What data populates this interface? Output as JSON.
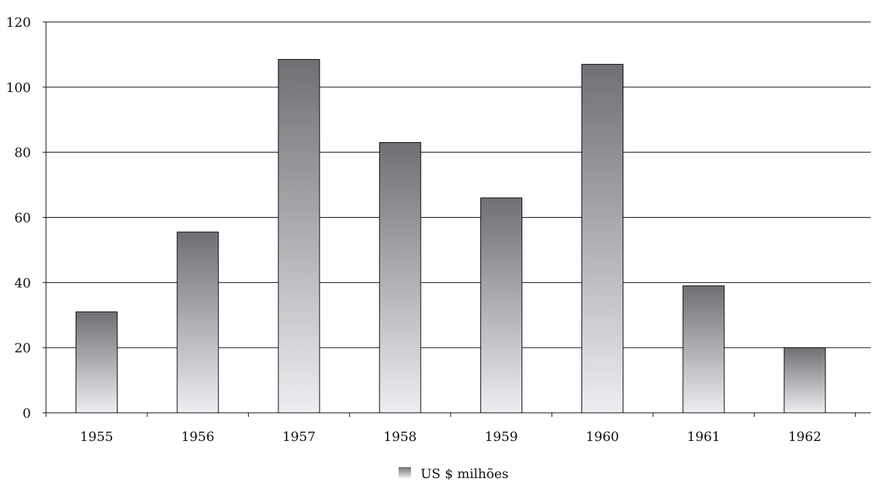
{
  "chart_data": {
    "type": "bar",
    "categories": [
      "1955",
      "1956",
      "1957",
      "1958",
      "1959",
      "1960",
      "1961",
      "1962"
    ],
    "series": [
      {
        "name": "US $ milhões",
        "values": [
          31,
          55.5,
          108.5,
          83,
          66,
          107,
          39,
          20
        ]
      }
    ],
    "title": "",
    "xlabel": "",
    "ylabel": "",
    "ylim": [
      0,
      120
    ],
    "yticks": [
      "0",
      "20",
      "40",
      "60",
      "80",
      "100",
      "120"
    ],
    "grid": true,
    "legend": {
      "position": "bottom-center",
      "label": "US $ milhões"
    },
    "colors": {
      "bar_top": "#707074",
      "bar_bottom": "#eeeef2",
      "grid": "#000000",
      "text": "#111111"
    }
  }
}
